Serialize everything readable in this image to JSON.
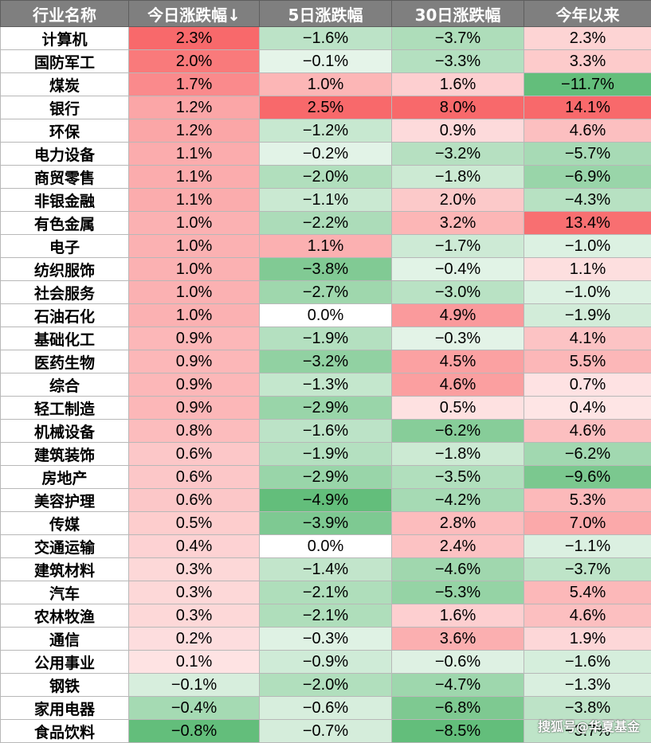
{
  "headers": [
    "行业名称",
    "今日涨跌幅↓",
    "5日涨跌幅",
    "30日涨跌幅",
    "今年以来"
  ],
  "rows": [
    {
      "name": "计算机",
      "values": [
        "2.3%",
        "−1.6%",
        "−3.7%",
        "2.3%"
      ]
    },
    {
      "name": "国防军工",
      "values": [
        "2.0%",
        "−0.1%",
        "−3.3%",
        "3.3%"
      ]
    },
    {
      "name": "煤炭",
      "values": [
        "1.7%",
        "1.0%",
        "1.6%",
        "−11.7%"
      ]
    },
    {
      "name": "银行",
      "values": [
        "1.2%",
        "2.5%",
        "8.0%",
        "14.1%"
      ]
    },
    {
      "name": "环保",
      "values": [
        "1.2%",
        "−1.2%",
        "0.9%",
        "4.6%"
      ]
    },
    {
      "name": "电力设备",
      "values": [
        "1.1%",
        "−0.2%",
        "−3.2%",
        "−5.7%"
      ]
    },
    {
      "name": "商贸零售",
      "values": [
        "1.1%",
        "−2.0%",
        "−1.8%",
        "−6.9%"
      ]
    },
    {
      "name": "非银金融",
      "values": [
        "1.1%",
        "−1.1%",
        "2.0%",
        "−4.3%"
      ]
    },
    {
      "name": "有色金属",
      "values": [
        "1.0%",
        "−2.2%",
        "3.2%",
        "13.4%"
      ]
    },
    {
      "name": "电子",
      "values": [
        "1.0%",
        "1.1%",
        "−1.7%",
        "−1.0%"
      ]
    },
    {
      "name": "纺织服饰",
      "values": [
        "1.0%",
        "−3.8%",
        "−0.4%",
        "1.1%"
      ]
    },
    {
      "name": "社会服务",
      "values": [
        "1.0%",
        "−2.7%",
        "−3.0%",
        "−1.0%"
      ]
    },
    {
      "name": "石油石化",
      "values": [
        "1.0%",
        "0.0%",
        "4.9%",
        "−1.9%"
      ]
    },
    {
      "name": "基础化工",
      "values": [
        "0.9%",
        "−1.9%",
        "−0.3%",
        "4.1%"
      ]
    },
    {
      "name": "医药生物",
      "values": [
        "0.9%",
        "−3.2%",
        "4.5%",
        "5.5%"
      ]
    },
    {
      "name": "综合",
      "values": [
        "0.9%",
        "−1.3%",
        "4.6%",
        "0.7%"
      ]
    },
    {
      "name": "轻工制造",
      "values": [
        "0.9%",
        "−2.9%",
        "0.5%",
        "0.4%"
      ]
    },
    {
      "name": "机械设备",
      "values": [
        "0.8%",
        "−1.6%",
        "−6.2%",
        "4.6%"
      ]
    },
    {
      "name": "建筑装饰",
      "values": [
        "0.6%",
        "−1.9%",
        "−1.8%",
        "−6.2%"
      ]
    },
    {
      "name": "房地产",
      "values": [
        "0.6%",
        "−2.9%",
        "−3.5%",
        "−9.6%"
      ]
    },
    {
      "name": "美容护理",
      "values": [
        "0.6%",
        "−4.9%",
        "−4.2%",
        "5.3%"
      ]
    },
    {
      "name": "传媒",
      "values": [
        "0.5%",
        "−3.9%",
        "2.8%",
        "7.0%"
      ]
    },
    {
      "name": "交通运输",
      "values": [
        "0.4%",
        "0.0%",
        "2.4%",
        "−1.1%"
      ]
    },
    {
      "name": "建筑材料",
      "values": [
        "0.3%",
        "−1.4%",
        "−4.6%",
        "−3.7%"
      ]
    },
    {
      "name": "汽车",
      "values": [
        "0.3%",
        "−2.1%",
        "−5.3%",
        "5.4%"
      ]
    },
    {
      "name": "农林牧渔",
      "values": [
        "0.3%",
        "−2.1%",
        "1.6%",
        "4.6%"
      ]
    },
    {
      "name": "通信",
      "values": [
        "0.2%",
        "−0.3%",
        "3.6%",
        "1.9%"
      ]
    },
    {
      "name": "公用事业",
      "values": [
        "0.1%",
        "−0.9%",
        "−0.6%",
        "−1.6%"
      ]
    },
    {
      "name": "钢铁",
      "values": [
        "−0.1%",
        "−2.0%",
        "−4.7%",
        "−1.3%"
      ]
    },
    {
      "name": "家用电器",
      "values": [
        "−0.4%",
        "−0.6%",
        "−6.8%",
        "−3.8%"
      ]
    },
    {
      "name": "食品饮料",
      "values": [
        "−0.8%",
        "−0.7%",
        "−8.5%",
        "−3.7%"
      ]
    }
  ],
  "colors": {
    "header_bg": "#7f7f7f",
    "positive": "#f8696b",
    "negative": "#63be7b",
    "neutral": "#ffffff"
  },
  "watermark": "搜狐号@华夏基金"
}
